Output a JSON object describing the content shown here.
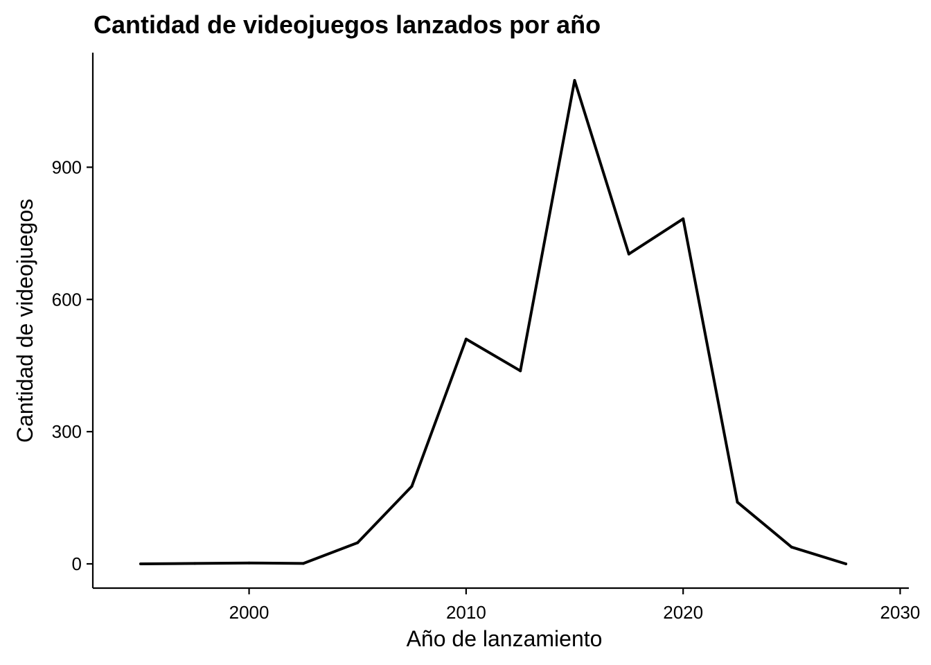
{
  "chart_data": {
    "type": "line",
    "title": "Cantidad de videojuegos lanzados por año",
    "xlabel": "Año de lanzamiento",
    "ylabel": "Cantidad de videojuegos",
    "xlim": [
      1992.8,
      2030.4
    ],
    "ylim": [
      -55,
      1160
    ],
    "x_ticks": [
      2000,
      2010,
      2020,
      2030
    ],
    "y_ticks": [
      0,
      300,
      600,
      900
    ],
    "grid": false,
    "line_color": "#000000",
    "series": [
      {
        "x": [
          1995,
          1997.5,
          2000,
          2002.5,
          2005,
          2007.5,
          2010,
          2012.5,
          2015,
          2017.5,
          2020,
          2022.5,
          2025,
          2027.5
        ],
        "values": [
          0,
          1,
          2,
          1,
          48,
          176,
          510,
          438,
          1097,
          703,
          783,
          140,
          38,
          0
        ]
      }
    ]
  }
}
